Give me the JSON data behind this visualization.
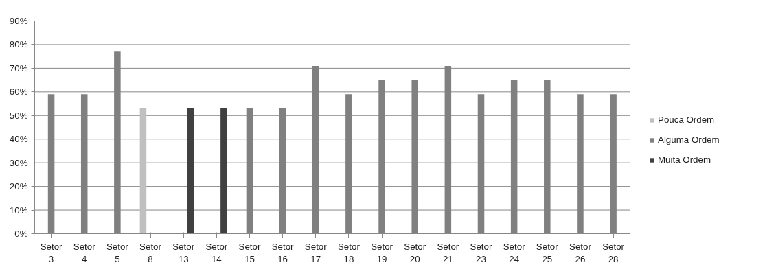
{
  "chart_data": {
    "type": "bar",
    "categories": [
      "Setor 3",
      "Setor 4",
      "Setor 5",
      "Setor 8",
      "Setor 13",
      "Setor 14",
      "Setor 15",
      "Setor 16",
      "Setor 17",
      "Setor 18",
      "Setor 19",
      "Setor 20",
      "Setor 21",
      "Setor 23",
      "Setor 24",
      "Setor 25",
      "Setor 26",
      "Setor 28"
    ],
    "series": [
      {
        "name": "Pouca Ordem",
        "color": "#c0c0c0",
        "values": [
          null,
          null,
          null,
          53,
          null,
          null,
          null,
          null,
          null,
          null,
          null,
          null,
          null,
          null,
          null,
          null,
          null,
          null
        ]
      },
      {
        "name": "Alguma Ordem",
        "color": "#808080",
        "values": [
          59,
          59,
          77,
          null,
          null,
          null,
          53,
          53,
          71,
          59,
          65,
          65,
          71,
          59,
          65,
          65,
          59,
          59
        ]
      },
      {
        "name": "Muita Ordem",
        "color": "#404040",
        "values": [
          null,
          null,
          null,
          null,
          53,
          53,
          null,
          null,
          null,
          null,
          null,
          null,
          null,
          null,
          null,
          null,
          null,
          null
        ]
      }
    ],
    "ylim": [
      0,
      90
    ],
    "yticks": [
      {
        "value": 0,
        "label": "0%"
      },
      {
        "value": 10,
        "label": "10%"
      },
      {
        "value": 20,
        "label": "20%"
      },
      {
        "value": 30,
        "label": "30%"
      },
      {
        "value": 40,
        "label": "40%"
      },
      {
        "value": 50,
        "label": "50%"
      },
      {
        "value": 60,
        "label": "60%"
      },
      {
        "value": 70,
        "label": "70%"
      },
      {
        "value": 80,
        "label": "80%"
      },
      {
        "value": 90,
        "label": "90%"
      }
    ],
    "grid": "y",
    "legend": "right"
  }
}
